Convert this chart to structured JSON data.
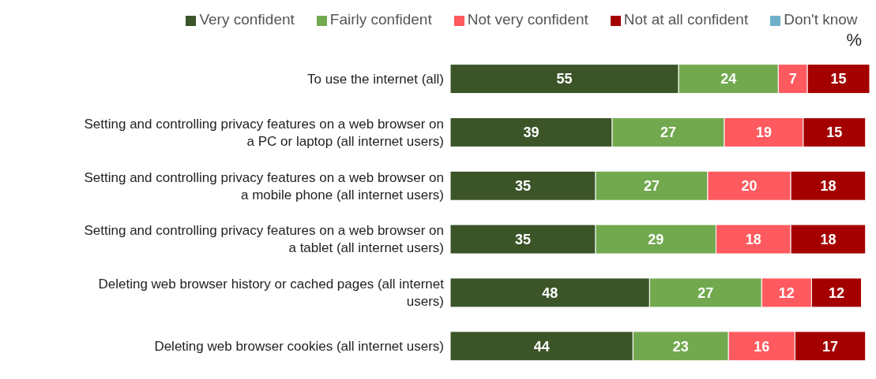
{
  "chart_data": {
    "type": "bar",
    "orientation": "horizontal",
    "stacked": true,
    "data_labels": true,
    "legend": "top",
    "grid": false,
    "annotations": [
      "%"
    ],
    "categories": [
      "To use the internet (all)",
      "Setting and controlling privacy features on a web browser on a PC or laptop (all internet users)",
      "Setting and controlling privacy features on a web browser on a mobile phone (all internet users)",
      "Setting and controlling privacy features on a web browser on a tablet (all internet users)",
      "Deleting web browser history or cached pages (all internet users)",
      "Deleting web browser cookies (all internet users)"
    ],
    "series": [
      {
        "name": "Very confident",
        "color": "#3b5428",
        "values": [
          55,
          39,
          35,
          35,
          48,
          44
        ]
      },
      {
        "name": "Fairly confident",
        "color": "#72a94f",
        "values": [
          24,
          27,
          27,
          29,
          27,
          23
        ]
      },
      {
        "name": "Not very confident",
        "color": "#ff5a5f",
        "values": [
          7,
          19,
          20,
          18,
          12,
          16
        ]
      },
      {
        "name": "Not at all confident",
        "color": "#a50000",
        "values": [
          15,
          15,
          18,
          18,
          12,
          17
        ]
      },
      {
        "name": "Don't know",
        "color": "#6fb0c8",
        "values": [
          null,
          null,
          null,
          null,
          null,
          null
        ]
      }
    ]
  }
}
